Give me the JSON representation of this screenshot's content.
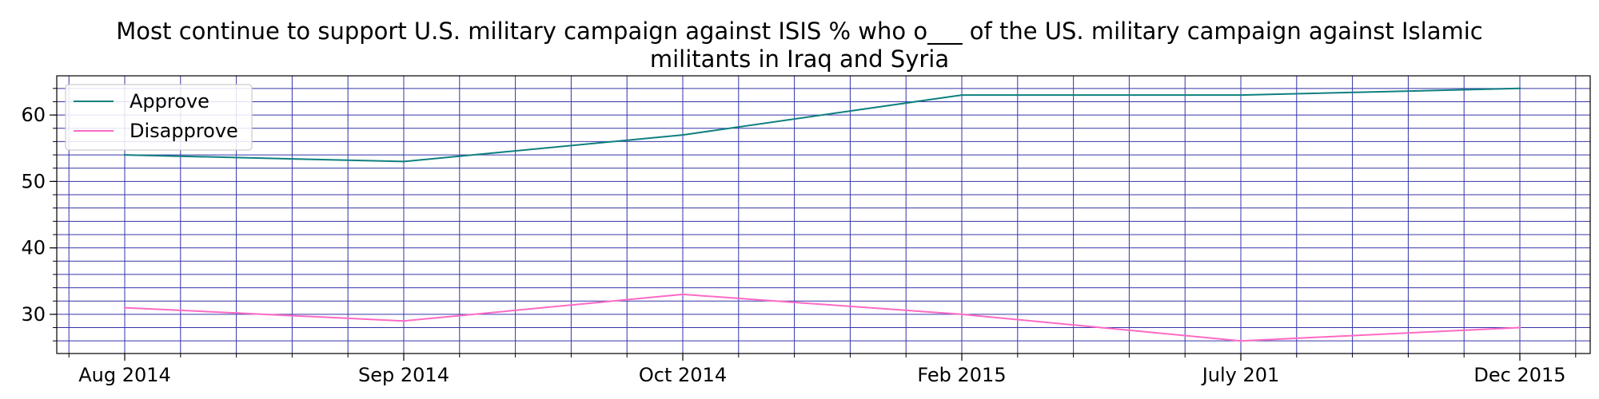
{
  "chart_data": {
    "type": "line",
    "title_lines": [
      "Most continue to support U.S. military campaign against ISIS % who o___ of the US. military campaign against Islamic",
      "militants in Iraq and Syria"
    ],
    "xlabel": "",
    "ylabel": "",
    "categories": [
      "Aug 2014",
      "Sep 2014",
      "Oct 2014",
      "Feb 2015",
      "July 201",
      "Dec 2015"
    ],
    "series": [
      {
        "name": "Approve",
        "values": [
          54,
          53,
          57,
          63,
          63,
          64
        ],
        "color": "#0f7f7f"
      },
      {
        "name": "Disapprove",
        "values": [
          31,
          29,
          33,
          30,
          26,
          28
        ],
        "color": "#ff69c4"
      }
    ],
    "ylim": [
      24.1,
      65.9
    ],
    "y_major_ticks": [
      30,
      40,
      50,
      60
    ],
    "y_minor_step": 2,
    "grid": true,
    "grid_color": "#3434a8",
    "legend_position": "top-left"
  }
}
